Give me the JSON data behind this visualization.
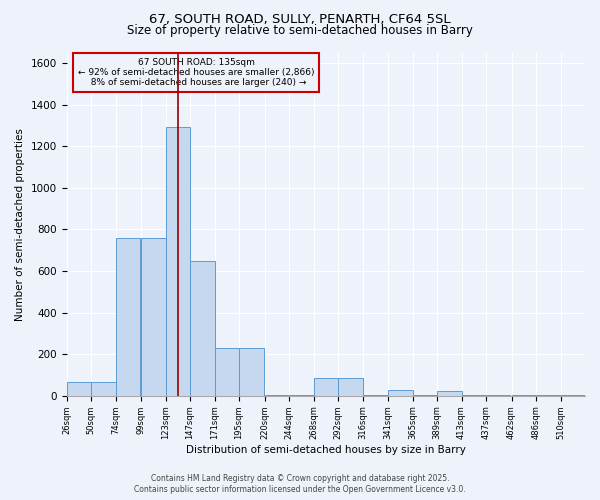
{
  "title1": "67, SOUTH ROAD, SULLY, PENARTH, CF64 5SL",
  "title2": "Size of property relative to semi-detached houses in Barry",
  "xlabel": "Distribution of semi-detached houses by size in Barry",
  "ylabel": "Number of semi-detached properties",
  "bar_labels": [
    "26sqm",
    "50sqm",
    "74sqm",
    "99sqm",
    "123sqm",
    "147sqm",
    "171sqm",
    "195sqm",
    "220sqm",
    "244sqm",
    "268sqm",
    "292sqm",
    "316sqm",
    "341sqm",
    "365sqm",
    "389sqm",
    "413sqm",
    "437sqm",
    "462sqm",
    "486sqm",
    "510sqm"
  ],
  "bar_heights": [
    65,
    65,
    760,
    760,
    1290,
    650,
    230,
    230,
    5,
    5,
    85,
    85,
    5,
    30,
    5,
    25,
    5,
    5,
    5,
    5,
    5
  ],
  "bar_color": "#C5D8F0",
  "bar_edge_color": "#5B9BD5",
  "ylim": [
    0,
    1650
  ],
  "yticks": [
    0,
    200,
    400,
    600,
    800,
    1000,
    1200,
    1400,
    1600
  ],
  "property_size": 135,
  "property_label": "67 SOUTH ROAD: 135sqm",
  "annotation_line1": "← 92% of semi-detached houses are smaller (2,866)",
  "annotation_line2": "8% of semi-detached houses are larger (240) →",
  "red_line_color": "#990000",
  "annotation_box_color": "#CC0000",
  "footer1": "Contains HM Land Registry data © Crown copyright and database right 2025.",
  "footer2": "Contains public sector information licensed under the Open Government Licence v3.0.",
  "background_color": "#EEF2FB",
  "grid_color": "#FFFFFF",
  "bin_width": 24
}
